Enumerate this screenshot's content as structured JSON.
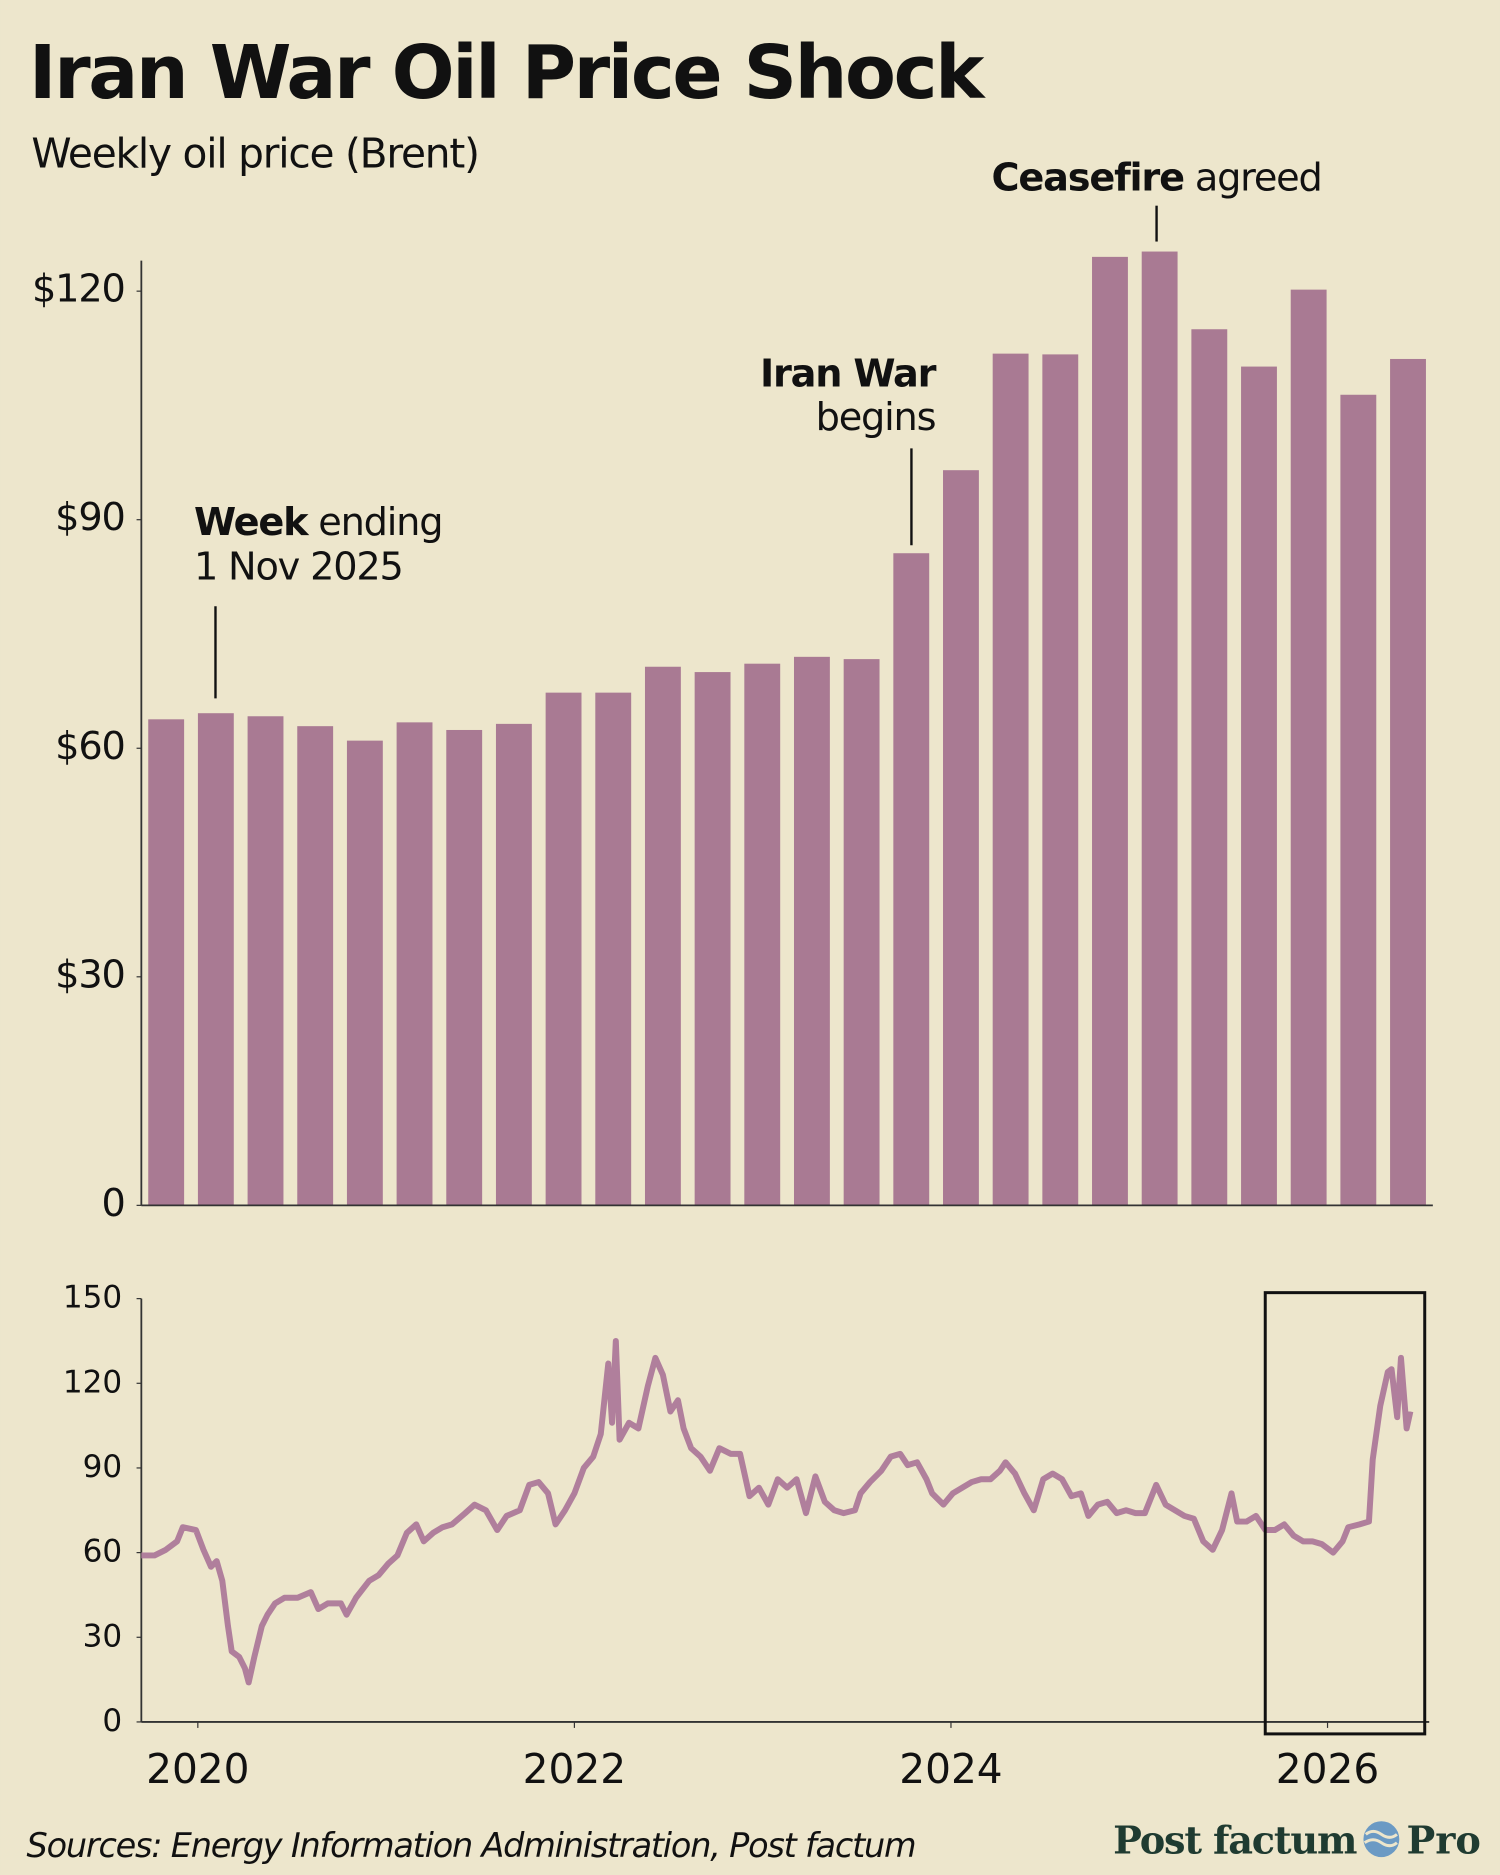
{
  "chart_data": [
    {
      "type": "bar",
      "title": "Iran War Oil Price Shock",
      "subtitle": "Weekly oil price (Brent)",
      "values": [
        63.8,
        64.6,
        64.2,
        62.9,
        61.0,
        63.4,
        62.4,
        63.2,
        67.3,
        67.3,
        70.7,
        70.0,
        71.1,
        72.0,
        71.7,
        85.6,
        96.5,
        111.8,
        111.7,
        124.5,
        125.2,
        115.0,
        110.1,
        120.2,
        106.4,
        111.1
      ],
      "color": "#a97a93",
      "ylim": [
        0,
        124
      ],
      "yticks": [
        0,
        {
          "value": 30,
          "label": "$30"
        },
        {
          "value": 60,
          "label": "$60"
        },
        {
          "value": 90,
          "label": "$90"
        },
        {
          "value": 120,
          "label": "$120"
        }
      ],
      "annotations": [
        {
          "bold": "Week",
          "text": "ending",
          "line2": "1 Nov 2025"
        },
        {
          "bold": "Iran War",
          "line2": "begins"
        },
        {
          "bold": "Ceasefire",
          "text": "agreed"
        }
      ]
    },
    {
      "type": "line",
      "color": "#b07f9c",
      "x": [
        2019.7,
        2019.77,
        2019.83,
        2019.89,
        2019.92,
        2019.99,
        2020.03,
        2020.07,
        2020.1,
        2020.13,
        2020.16,
        2020.18,
        2020.22,
        2020.25,
        2020.27,
        2020.3,
        2020.34,
        2020.37,
        2020.41,
        2020.46,
        2020.53,
        2020.6,
        2020.64,
        2020.69,
        2020.76,
        2020.79,
        2020.84,
        2020.91,
        2020.96,
        2021.01,
        2021.06,
        2021.11,
        2021.16,
        2021.2,
        2021.25,
        2021.3,
        2021.35,
        2021.42,
        2021.47,
        2021.53,
        2021.59,
        2021.64,
        2021.71,
        2021.76,
        2021.81,
        2021.86,
        2021.9,
        2021.95,
        2022.0,
        2022.05,
        2022.1,
        2022.14,
        2022.18,
        2022.2,
        2022.22,
        2022.24,
        2022.29,
        2022.34,
        2022.39,
        2022.43,
        2022.47,
        2022.51,
        2022.55,
        2022.58,
        2022.62,
        2022.67,
        2022.72,
        2022.77,
        2022.83,
        2022.88,
        2022.93,
        2022.98,
        2023.03,
        2023.08,
        2023.13,
        2023.18,
        2023.23,
        2023.28,
        2023.33,
        2023.38,
        2023.43,
        2023.49,
        2023.52,
        2023.57,
        2023.63,
        2023.68,
        2023.73,
        2023.77,
        2023.82,
        2023.87,
        2023.9,
        2023.96,
        2024.01,
        2024.06,
        2024.11,
        2024.16,
        2024.21,
        2024.26,
        2024.29,
        2024.34,
        2024.39,
        2024.44,
        2024.49,
        2024.54,
        2024.59,
        2024.64,
        2024.69,
        2024.73,
        2024.78,
        2024.83,
        2024.88,
        2024.93,
        2024.98,
        2025.03,
        2025.09,
        2025.14,
        2025.19,
        2025.24,
        2025.29,
        2025.34,
        2025.39,
        2025.44,
        2025.49,
        2025.52,
        2025.57,
        2025.62,
        2025.67,
        2025.72,
        2025.77,
        2025.82,
        2025.87,
        2025.92,
        2025.97,
        2026.03,
        2026.08,
        2026.11,
        2026.17,
        2026.22,
        2026.24,
        2026.28,
        2026.32,
        2026.34,
        2026.37,
        2026.39,
        2026.42,
        2026.44
      ],
      "values": [
        59,
        59,
        61,
        64,
        69,
        68,
        61,
        55,
        57,
        50,
        34,
        25,
        23,
        19,
        14,
        23,
        34,
        38,
        42,
        44,
        44,
        46,
        40,
        42,
        42,
        38,
        44,
        50,
        52,
        56,
        59,
        67,
        70,
        64,
        67,
        69,
        70,
        74,
        77,
        75,
        68,
        73,
        75,
        84,
        85,
        81,
        70,
        75,
        81,
        90,
        94,
        102,
        127,
        106,
        135,
        100,
        106,
        104,
        119,
        129,
        123,
        110,
        114,
        104,
        97,
        94,
        89,
        97,
        95,
        95,
        80,
        83,
        77,
        86,
        83,
        86,
        74,
        87,
        78,
        75,
        74,
        75,
        81,
        85,
        89,
        94,
        95,
        91,
        92,
        86,
        81,
        77,
        81,
        83,
        85,
        86,
        86,
        89,
        92,
        88,
        81,
        75,
        86,
        88,
        86,
        80,
        81,
        73,
        77,
        78,
        74,
        75,
        74,
        74,
        84,
        77,
        75,
        73,
        72,
        64,
        61,
        68,
        81,
        71,
        71,
        73,
        68,
        68,
        70,
        66,
        64,
        64,
        63,
        60,
        64,
        69,
        70,
        71,
        93,
        112,
        124,
        125,
        108,
        129,
        104,
        110
      ],
      "xlim": [
        2019.7,
        2026.54
      ],
      "xticks": [
        2020,
        2022,
        2024,
        2026
      ],
      "ylim": [
        0,
        150
      ],
      "yticks": [
        0,
        30,
        60,
        90,
        120,
        150
      ],
      "highlight": [
        2025.72,
        2026.44
      ]
    }
  ],
  "source": "Sources: Energy Information Administration, Post factum",
  "brand": {
    "name": "Post factum",
    "tier": "Pro"
  }
}
